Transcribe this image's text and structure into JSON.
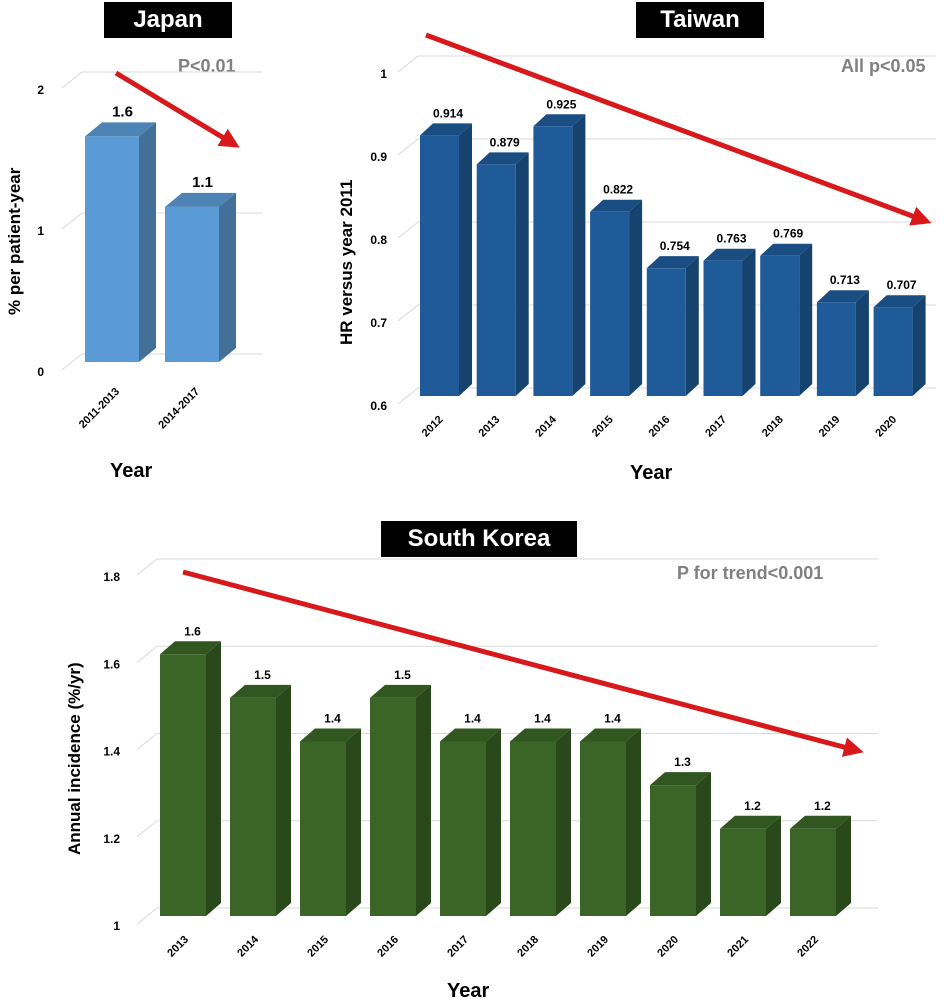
{
  "chart_data": [
    {
      "type": "bar",
      "title": "Japan",
      "annotation": "P<0.01",
      "categories": [
        "2011-2013",
        "2014-2017"
      ],
      "values": [
        1.6,
        1.1
      ],
      "value_labels": [
        "1.6",
        "1.1"
      ],
      "xlabel": "Year",
      "ylabel": "% per patient-year",
      "ylim": [
        0,
        2
      ],
      "yticks": [
        0,
        1,
        2
      ],
      "ytick_labels": [
        "0",
        "1",
        "2"
      ],
      "grid": true,
      "bar_color": "#5b9bd5",
      "trend_arrow": "decreasing"
    },
    {
      "type": "bar",
      "title": "Taiwan",
      "annotation": "All p<0.05",
      "categories": [
        "2012",
        "2013",
        "2014",
        "2015",
        "2016",
        "2017",
        "2018",
        "2019",
        "2020"
      ],
      "values": [
        0.914,
        0.879,
        0.925,
        0.822,
        0.754,
        0.763,
        0.769,
        0.713,
        0.707
      ],
      "value_labels": [
        "0.914",
        "0.879",
        "0.925",
        "0.822",
        "0.754",
        "0.763",
        "0.769",
        "0.713",
        "0.707"
      ],
      "xlabel": "Year",
      "ylabel": "HR versus year 2011",
      "ylim": [
        0.6,
        1.0
      ],
      "yticks": [
        0.6,
        0.7,
        0.8,
        0.9,
        1.0
      ],
      "ytick_labels": [
        "0.6",
        "0.7",
        "0.8",
        "0.9",
        "1"
      ],
      "grid": true,
      "bar_color": "#1f5b99",
      "trend_arrow": "decreasing"
    },
    {
      "type": "bar",
      "title": "South Korea",
      "annotation": "P for trend<0.001",
      "categories": [
        "2013",
        "2014",
        "2015",
        "2016",
        "2017",
        "2018",
        "2019",
        "2020",
        "2021",
        "2022"
      ],
      "values": [
        1.6,
        1.5,
        1.4,
        1.5,
        1.4,
        1.4,
        1.4,
        1.3,
        1.2,
        1.2
      ],
      "value_labels": [
        "1.6",
        "1.5",
        "1.4",
        "1.5",
        "1.4",
        "1.4",
        "1.4",
        "1.3",
        "1.2",
        "1.2"
      ],
      "xlabel": "Year",
      "ylabel": "Annual incidence (%/yr)",
      "ylim": [
        1.0,
        1.8
      ],
      "yticks": [
        1.0,
        1.2,
        1.4,
        1.6,
        1.8
      ],
      "ytick_labels": [
        "1",
        "1.2",
        "1.4",
        "1.6",
        "1.8"
      ],
      "grid": true,
      "bar_color": "#3a6526",
      "trend_arrow": "decreasing"
    }
  ],
  "colors": {
    "arrow": "#d7191c",
    "grid": "#d9d9d9",
    "annotation": "#808080"
  }
}
